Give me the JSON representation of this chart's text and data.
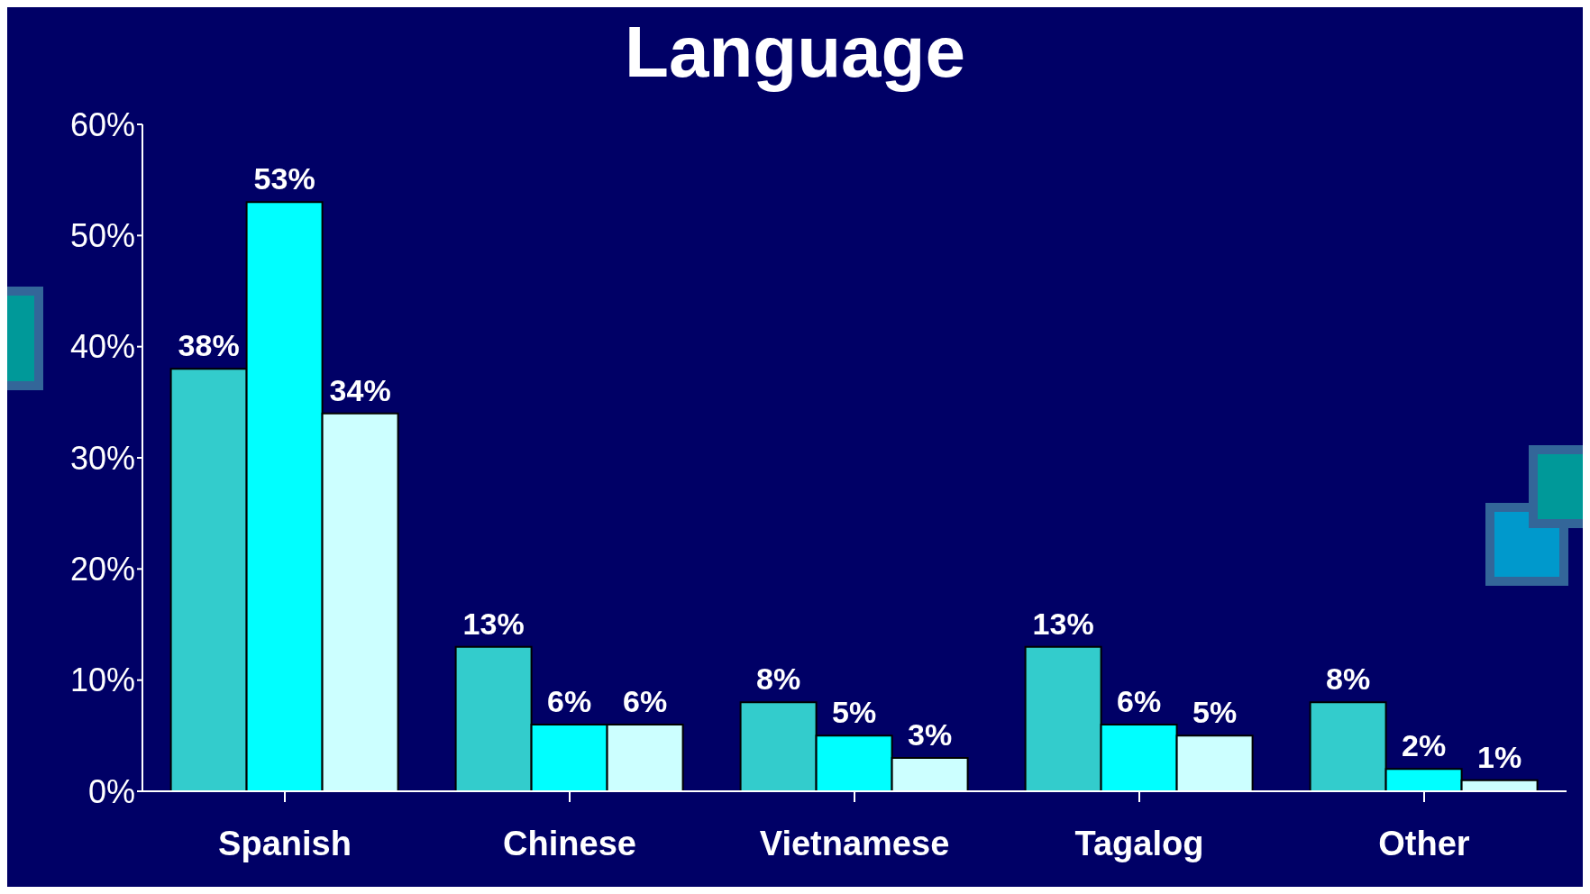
{
  "chart_data": {
    "type": "bar",
    "title": "Language",
    "categories": [
      "Spanish",
      "Chinese",
      "Vietnamese",
      "Tagalog",
      "Other"
    ],
    "series": [
      {
        "color": "#33cccc",
        "values": [
          38,
          13,
          8,
          13,
          8
        ],
        "value_labels": [
          "38%",
          "13%",
          "8%",
          "13%",
          "8%"
        ]
      },
      {
        "color": "#00ffff",
        "values": [
          53,
          6,
          5,
          6,
          2
        ],
        "value_labels": [
          "53%",
          "6%",
          "5%",
          "6%",
          "2%"
        ]
      },
      {
        "color": "#ccffff",
        "values": [
          34,
          6,
          3,
          5,
          1
        ],
        "value_labels": [
          "34%",
          "6%",
          "3%",
          "5%",
          "1%"
        ]
      }
    ],
    "ylim": [
      0,
      60
    ],
    "yticks": [
      {
        "value": 0,
        "label": "0%"
      },
      {
        "value": 10,
        "label": "10%"
      },
      {
        "value": 20,
        "label": "20%"
      },
      {
        "value": 30,
        "label": "30%"
      },
      {
        "value": 40,
        "label": "40%"
      },
      {
        "value": 50,
        "label": "50%"
      },
      {
        "value": 60,
        "label": "60%"
      }
    ],
    "grid": false,
    "legend": false
  }
}
